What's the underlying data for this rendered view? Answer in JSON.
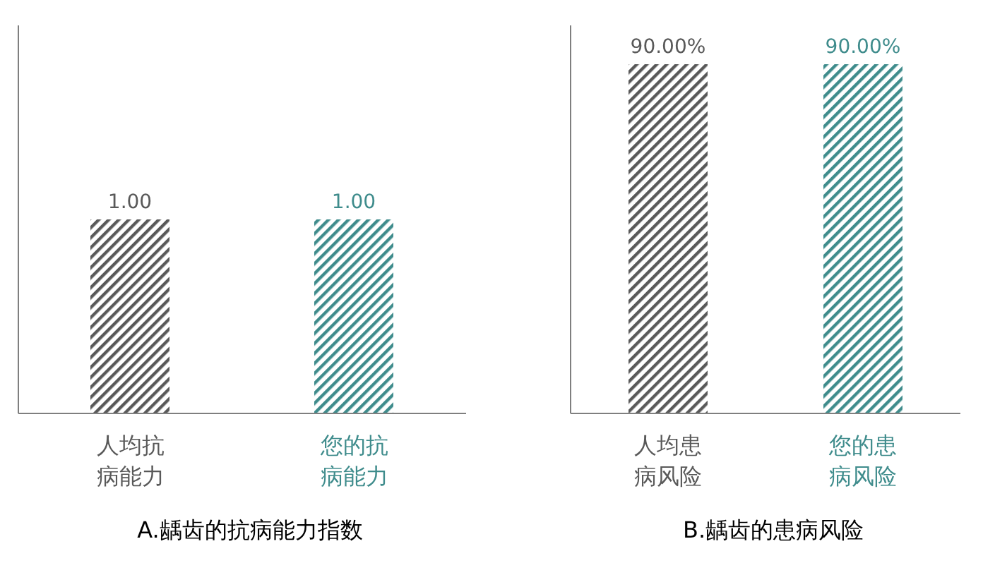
{
  "chart_data": [
    {
      "type": "bar",
      "title": "A.龋齿的抗病能力指数",
      "categories": [
        "人均抗病能力",
        "您的抗病能力"
      ],
      "values": [
        1.0,
        1.0
      ],
      "colors": [
        "#595959",
        "#3f8c8c"
      ],
      "value_labels": [
        "1.00",
        "1.00"
      ],
      "ylim": [
        0,
        2
      ],
      "tick_labels": "x"
    },
    {
      "type": "bar",
      "title": "B.龋齿的患病风险",
      "categories": [
        "人均患病风险",
        "您的患病风险"
      ],
      "values": [
        90,
        90
      ],
      "colors": [
        "#595959",
        "#3f8c8c"
      ],
      "value_labels": [
        "90.00%",
        "90.00%"
      ],
      "ylim": [
        0,
        100
      ],
      "tick_labels": "x"
    }
  ]
}
